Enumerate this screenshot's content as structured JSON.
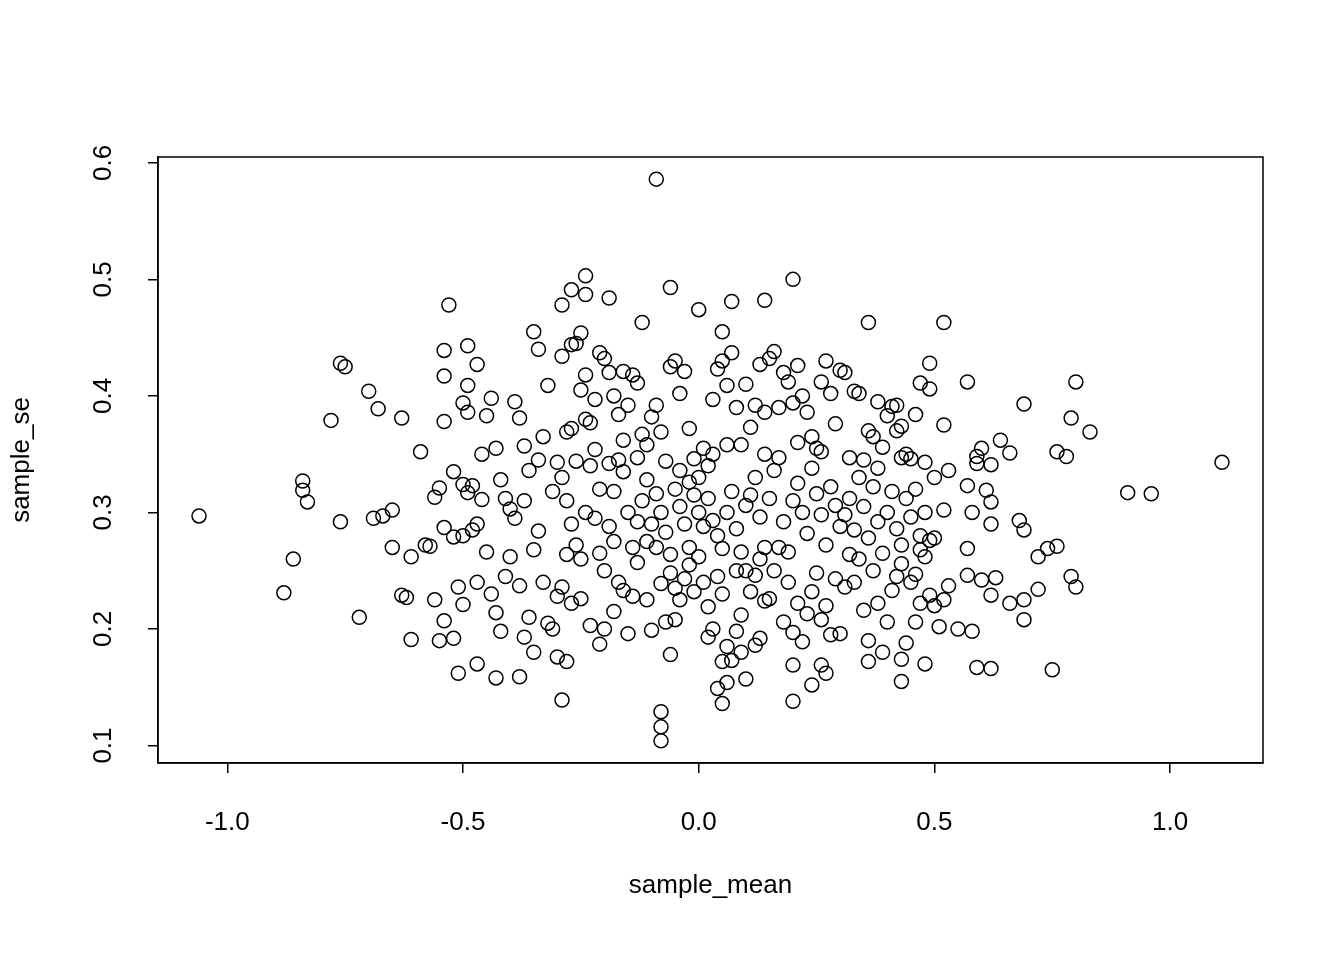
{
  "chart_data": {
    "type": "scatter",
    "x_label": "sample_mean",
    "y_label": "sample_se",
    "x": [
      -1.06,
      -0.88,
      -0.86,
      -0.84,
      -0.84,
      -0.83,
      -0.78,
      -0.76,
      -0.75,
      -0.76,
      -0.72,
      -0.7,
      -0.69,
      -0.68,
      -0.67,
      -0.65,
      -0.65,
      -0.63,
      -0.63,
      -0.62,
      -0.61,
      -0.61,
      -0.59,
      -0.58,
      -0.57,
      -0.56,
      -0.56,
      -0.55,
      -0.54,
      -0.54,
      -0.53,
      -0.54,
      -0.54,
      -0.54,
      -0.55,
      -0.52,
      -0.51,
      -0.5,
      -0.49,
      -0.49,
      -0.47,
      -0.47,
      -0.43,
      -0.42,
      -0.38,
      -0.37,
      -0.35,
      -0.3,
      -0.29,
      -0.28,
      -0.24,
      -0.24,
      -0.27,
      -0.29,
      -0.25,
      -0.06,
      -0.09,
      0,
      0.05,
      0.07,
      0.14,
      0.2,
      0.36,
      0.52,
      -0.12,
      -0.19,
      -0.08,
      -0.08,
      -0.08,
      0.05,
      0.04,
      0.06,
      0.1,
      0.2,
      0.24,
      0.27,
      0.26,
      0.2,
      0.36,
      0.43,
      0.48,
      0.43,
      0.59,
      0.62,
      0.75,
      1.11,
      0.96,
      0.91,
      0.8,
      0.79,
      0.72,
      0.69,
      0.69,
      0.66,
      0.69,
      0.68,
      0.72,
      0.74,
      0.76,
      0.76,
      0.78,
      0.79,
      0.8,
      0.83,
      0.69,
      0.64,
      0.66,
      0.62,
      0.59,
      0.6,
      0.59,
      0.61,
      0.62,
      0.58,
      0.57,
      0.57,
      0.52,
      0.49,
      0.49,
      0.47,
      0.46,
      0.41,
      0.43,
      0.45,
      0.43,
      0.57,
      0.57,
      0.58,
      0.6,
      0.62,
      0.63,
      0.62,
      0.53,
      0.52,
      0.51,
      0.55,
      0.5,
      0.49,
      0.47,
      0.46,
      0.47,
      0.49,
      0.5,
      0.5,
      0.52,
      0.53,
      -0.5,
      -0.49,
      -0.48,
      -0.49,
      -0.47,
      -0.46,
      -0.45,
      -0.44,
      -0.43,
      -0.42,
      -0.41,
      -0.4,
      -0.39,
      -0.38,
      -0.37,
      -0.36,
      -0.35,
      -0.34,
      -0.33,
      -0.32,
      -0.31,
      -0.3,
      -0.47,
      -0.45,
      -0.44,
      -0.43,
      -0.41,
      -0.4,
      -0.38,
      -0.36,
      -0.35,
      -0.34,
      -0.33,
      -0.32,
      -0.31,
      -0.3,
      -0.48,
      -0.46,
      -0.39,
      -0.37,
      -0.34,
      -0.5,
      -0.51,
      -0.52,
      -0.5,
      -0.52,
      -0.29,
      -0.27,
      -0.26,
      -0.28,
      -0.27,
      -0.25,
      -0.24,
      -0.23,
      -0.22,
      -0.21,
      -0.2,
      -0.19,
      -0.18,
      -0.17,
      -0.16,
      -0.15,
      -0.14,
      -0.13,
      -0.12,
      -0.11,
      -0.1,
      -0.29,
      -0.28,
      -0.27,
      -0.26,
      -0.25,
      -0.24,
      -0.23,
      -0.22,
      -0.21,
      -0.2,
      -0.19,
      -0.18,
      -0.17,
      -0.16,
      -0.15,
      -0.14,
      -0.13,
      -0.12,
      -0.11,
      -0.1,
      -0.29,
      -0.27,
      -0.25,
      -0.23,
      -0.21,
      -0.2,
      -0.18,
      -0.17,
      -0.16,
      -0.15,
      -0.14,
      -0.13,
      -0.11,
      -0.1,
      -0.28,
      -0.22,
      -0.19,
      -0.16,
      -0.13,
      -0.11,
      -0.26,
      -0.24,
      -0.21,
      -0.18,
      -0.09,
      -0.08,
      -0.07,
      -0.06,
      -0.05,
      -0.04,
      -0.03,
      -0.02,
      -0.01,
      0,
      0.01,
      0.02,
      0.03,
      0.04,
      0.05,
      0.06,
      0.07,
      0.08,
      0.09,
      0.1,
      -0.09,
      -0.08,
      -0.07,
      -0.06,
      -0.05,
      -0.04,
      -0.03,
      -0.02,
      -0.01,
      0,
      0.01,
      0.02,
      0.03,
      0.04,
      0.05,
      0.06,
      0.07,
      0.08,
      0.09,
      0.1,
      -0.09,
      -0.08,
      -0.07,
      -0.06,
      -0.05,
      -0.04,
      -0.03,
      -0.02,
      -0.01,
      0,
      0.01,
      0.02,
      0.03,
      0.04,
      0.05,
      0.06,
      0.07,
      0.08,
      0.09,
      0.1,
      -0.06,
      -0.05,
      0.02,
      0.05,
      0.09,
      -0.04,
      0.03,
      0.06,
      -0.02,
      0.08,
      0.11,
      0.12,
      0.13,
      0.14,
      0.15,
      0.16,
      0.17,
      0.18,
      0.19,
      0.2,
      0.21,
      0.22,
      0.23,
      0.24,
      0.25,
      0.26,
      0.27,
      0.28,
      0.29,
      0.3,
      0.11,
      0.12,
      0.13,
      0.14,
      0.15,
      0.16,
      0.17,
      0.18,
      0.19,
      0.2,
      0.21,
      0.22,
      0.23,
      0.24,
      0.25,
      0.26,
      0.27,
      0.28,
      0.29,
      0.3,
      0.11,
      0.12,
      0.13,
      0.14,
      0.15,
      0.16,
      0.18,
      0.19,
      0.2,
      0.21,
      0.22,
      0.23,
      0.24,
      0.25,
      0.26,
      0.27,
      0.28,
      0.29,
      0.3,
      0.12,
      0.13,
      0.17,
      0.21,
      0.26,
      0.14,
      0.31,
      0.33,
      0.34,
      0.36,
      0.37,
      0.38,
      0.39,
      0.4,
      0.42,
      0.44,
      0.31,
      0.32,
      0.33,
      0.34,
      0.35,
      0.36,
      0.37,
      0.38,
      0.39,
      0.4,
      0.41,
      0.42,
      0.43,
      0.44,
      0.45,
      0.46,
      0.47,
      0.48,
      0.31,
      0.32,
      0.33,
      0.35,
      0.36,
      0.37,
      0.38,
      0.4,
      0.41,
      0.42,
      0.44,
      0.45,
      0.46,
      0.32,
      0.35,
      0.38,
      0.42,
      0.48,
      0.48,
      0.34,
      0.39,
      0.43
    ],
    "values": [
      0.297,
      0.231,
      0.26,
      0.327,
      0.319,
      0.309,
      0.379,
      0.428,
      0.425,
      0.292,
      0.21,
      0.404,
      0.295,
      0.389,
      0.297,
      0.302,
      0.27,
      0.381,
      0.229,
      0.227,
      0.262,
      0.191,
      0.352,
      0.272,
      0.271,
      0.225,
      0.313,
      0.321,
      0.417,
      0.439,
      0.478,
      0.378,
      0.287,
      0.207,
      0.19,
      0.192,
      0.162,
      0.221,
      0.443,
      0.409,
      0.427,
      0.17,
      0.158,
      0.198,
      0.159,
      0.193,
      0.18,
      0.176,
      0.139,
      0.172,
      0.503,
      0.487,
      0.491,
      0.478,
      0.454,
      0.493,
      0.586,
      0.474,
      0.455,
      0.481,
      0.482,
      0.5,
      0.463,
      0.463,
      0.463,
      0.484,
      0.104,
      0.116,
      0.129,
      0.136,
      0.149,
      0.154,
      0.157,
      0.138,
      0.152,
      0.162,
      0.169,
      0.169,
      0.172,
      0.155,
      0.17,
      0.174,
      0.167,
      0.166,
      0.165,
      0.343,
      0.316,
      0.317,
      0.236,
      0.245,
      0.234,
      0.208,
      0.225,
      0.222,
      0.285,
      0.293,
      0.262,
      0.269,
      0.271,
      0.352,
      0.348,
      0.381,
      0.412,
      0.369,
      0.393,
      0.362,
      0.351,
      0.341,
      0.342,
      0.355,
      0.348,
      0.319,
      0.309,
      0.3,
      0.323,
      0.412,
      0.375,
      0.428,
      0.406,
      0.411,
      0.384,
      0.391,
      0.374,
      0.346,
      0.347,
      0.269,
      0.246,
      0.198,
      0.242,
      0.229,
      0.244,
      0.29,
      0.237,
      0.225,
      0.202,
      0.2,
      0.22,
      0.229,
      0.222,
      0.247,
      0.268,
      0.276,
      0.278,
      0.33,
      0.302,
      0.336,
      0.394,
      0.386,
      0.323,
      0.317,
      0.29,
      0.311,
      0.383,
      0.398,
      0.355,
      0.328,
      0.312,
      0.303,
      0.395,
      0.381,
      0.357,
      0.336,
      0.455,
      0.44,
      0.365,
      0.409,
      0.318,
      0.343,
      0.24,
      0.266,
      0.23,
      0.214,
      0.245,
      0.262,
      0.237,
      0.21,
      0.268,
      0.284,
      0.24,
      0.205,
      0.2,
      0.228,
      0.285,
      0.35,
      0.295,
      0.31,
      0.345,
      0.28,
      0.236,
      0.279,
      0.324,
      0.335,
      0.434,
      0.444,
      0.445,
      0.369,
      0.372,
      0.405,
      0.418,
      0.377,
      0.397,
      0.437,
      0.432,
      0.42,
      0.4,
      0.384,
      0.421,
      0.392,
      0.418,
      0.411,
      0.367,
      0.358,
      0.382,
      0.33,
      0.31,
      0.29,
      0.272,
      0.26,
      0.3,
      0.34,
      0.295,
      0.265,
      0.25,
      0.288,
      0.318,
      0.345,
      0.335,
      0.3,
      0.27,
      0.292,
      0.31,
      0.328,
      0.29,
      0.236,
      0.222,
      0.226,
      0.203,
      0.187,
      0.2,
      0.215,
      0.24,
      0.233,
      0.196,
      0.228,
      0.257,
      0.225,
      0.199,
      0.264,
      0.354,
      0.342,
      0.362,
      0.347,
      0.275,
      0.344,
      0.38,
      0.32,
      0.275,
      0.392,
      0.369,
      0.344,
      0.425,
      0.43,
      0.402,
      0.421,
      0.372,
      0.346,
      0.33,
      0.355,
      0.34,
      0.397,
      0.423,
      0.43,
      0.409,
      0.437,
      0.39,
      0.358,
      0.41,
      0.316,
      0.3,
      0.283,
      0.264,
      0.32,
      0.305,
      0.29,
      0.326,
      0.315,
      0.3,
      0.288,
      0.312,
      0.293,
      0.28,
      0.269,
      0.3,
      0.318,
      0.286,
      0.266,
      0.306,
      0.27,
      0.239,
      0.206,
      0.248,
      0.235,
      0.225,
      0.243,
      0.255,
      0.232,
      0.262,
      0.24,
      0.219,
      0.2,
      0.245,
      0.23,
      0.185,
      0.173,
      0.198,
      0.212,
      0.25,
      0.178,
      0.208,
      0.193,
      0.172,
      0.18,
      0.336,
      0.35,
      0.358,
      0.27,
      0.25,
      0.373,
      0.392,
      0.427,
      0.386,
      0.432,
      0.438,
      0.39,
      0.42,
      0.412,
      0.394,
      0.426,
      0.4,
      0.386,
      0.365,
      0.355,
      0.412,
      0.43,
      0.402,
      0.376,
      0.422,
      0.315,
      0.33,
      0.296,
      0.27,
      0.312,
      0.336,
      0.347,
      0.292,
      0.266,
      0.31,
      0.325,
      0.3,
      0.282,
      0.338,
      0.316,
      0.298,
      0.272,
      0.322,
      0.306,
      0.288,
      0.232,
      0.246,
      0.192,
      0.224,
      0.226,
      0.25,
      0.206,
      0.24,
      0.197,
      0.222,
      0.189,
      0.213,
      0.232,
      0.248,
      0.208,
      0.22,
      0.195,
      0.243,
      0.196,
      0.186,
      0.26,
      0.27,
      0.36,
      0.352,
      0.35,
      0.42,
      0.404,
      0.402,
      0.37,
      0.365,
      0.395,
      0.356,
      0.383,
      0.392,
      0.35,
      0.298,
      0.312,
      0.285,
      0.33,
      0.305,
      0.278,
      0.322,
      0.292,
      0.265,
      0.3,
      0.318,
      0.286,
      0.272,
      0.312,
      0.296,
      0.32,
      0.28,
      0.262,
      0.236,
      0.264,
      0.24,
      0.216,
      0.19,
      0.25,
      0.222,
      0.206,
      0.233,
      0.245,
      0.188,
      0.24,
      0.206,
      0.347,
      0.345,
      0.338,
      0.37,
      0.343,
      0.3,
      0.26,
      0.18,
      0.256
    ],
    "xlim": [
      -1.147,
      1.197
    ],
    "ylim": [
      0.085,
      0.605
    ],
    "xticks": [
      {
        "value": -1,
        "label": "-1.0"
      },
      {
        "value": -0.5,
        "label": "-0.5"
      },
      {
        "value": 0,
        "label": "0.0"
      },
      {
        "value": 0.5,
        "label": "0.5"
      },
      {
        "value": 1,
        "label": "1.0"
      }
    ],
    "yticks": [
      0.1,
      0.2,
      0.3,
      0.4,
      0.5,
      0.6
    ],
    "grid": false,
    "color": "#000000",
    "marker": "circle"
  }
}
